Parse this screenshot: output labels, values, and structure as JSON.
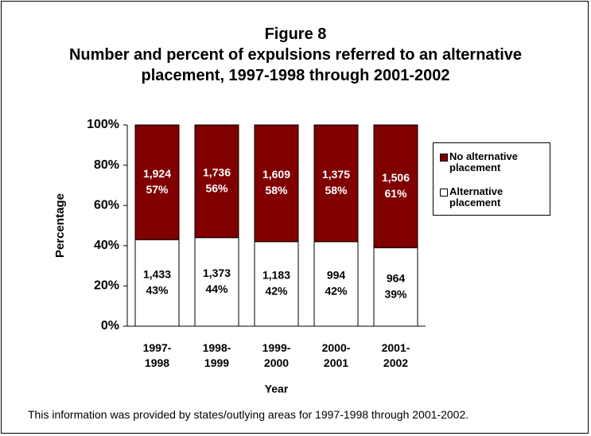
{
  "chart_data": {
    "type": "stacked_bar",
    "title": "Figure 8",
    "subtitle": "Number and percent of expulsions referred to an alternative placement, 1997-1998 through 2001-2002",
    "y_label": "Percentage",
    "x_label": "Year",
    "categories": [
      "1997-1998",
      "1998-1999",
      "1999-2000",
      "2000-2001",
      "2001-2002"
    ],
    "series": [
      {
        "name": "Alternative placement",
        "color": "#ffffff",
        "label_color": "#000000",
        "values": [
          43,
          44,
          42,
          42,
          39
        ],
        "value_labels": [
          "43%",
          "44%",
          "42%",
          "42%",
          "39%"
        ],
        "counts": [
          1433,
          1373,
          1183,
          994,
          964
        ],
        "count_labels": [
          "1,433",
          "1,373",
          "1,183",
          "994",
          "964"
        ]
      },
      {
        "name": "No alternative placement",
        "color": "#800000",
        "label_color": "#ffffff",
        "values": [
          57,
          56,
          58,
          58,
          61
        ],
        "value_labels": [
          "57%",
          "56%",
          "58%",
          "58%",
          "61%"
        ],
        "counts": [
          1924,
          1736,
          1609,
          1375,
          1506
        ],
        "count_labels": [
          "1,924",
          "1,736",
          "1,609",
          "1,375",
          "1,506"
        ]
      }
    ],
    "ylim": [
      0,
      100
    ],
    "yticks": [
      {
        "value": 0,
        "label": "0%"
      },
      {
        "value": 20,
        "label": "20%"
      },
      {
        "value": 40,
        "label": "40%"
      },
      {
        "value": 60,
        "label": "60%"
      },
      {
        "value": 80,
        "label": "80%"
      },
      {
        "value": 100,
        "label": "100%"
      }
    ],
    "legend": "right",
    "grid": false,
    "note": "This information was provided by states/outlying areas for 1997-1998 through 2001-2002."
  }
}
